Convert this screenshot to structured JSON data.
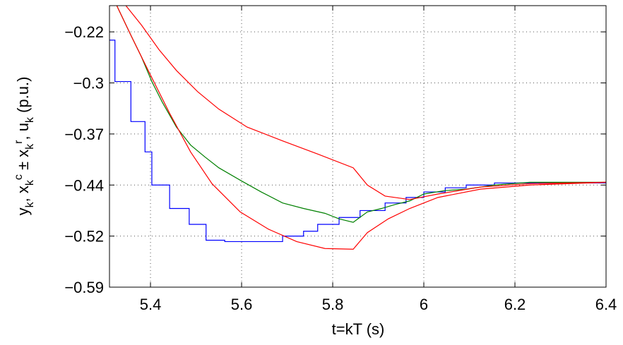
{
  "chart_data": {
    "type": "line",
    "xlabel": "t=kT (s)",
    "ylabel": [
      "y",
      "k",
      ", x",
      "k",
      "c",
      " ± x",
      "k",
      "r",
      ", u",
      "k",
      " (p.u.)"
    ],
    "xlim": [
      5.31,
      6.4
    ],
    "xticks": [
      5.4,
      5.6,
      5.8,
      6,
      6.2,
      6.4
    ],
    "ylim": [
      -0.592,
      -0.184
    ],
    "yticks": [
      {
        "value": -0.592,
        "label": "−0.59"
      },
      {
        "value": -0.518,
        "label": "−0.52"
      },
      {
        "value": -0.444,
        "label": "−0.44"
      },
      {
        "value": -0.37,
        "label": "−0.37"
      },
      {
        "value": -0.296,
        "label": "−0.3"
      },
      {
        "value": -0.222,
        "label": "−0.22"
      }
    ],
    "grid": true,
    "series": [
      {
        "color": "#0000ff",
        "x": [
          5.31,
          5.322,
          5.322,
          5.357,
          5.357,
          5.388,
          5.388,
          5.403,
          5.403,
          5.442,
          5.442,
          5.485,
          5.485,
          5.522,
          5.522,
          5.563,
          5.563,
          5.69,
          5.69,
          5.736,
          5.736,
          5.767,
          5.767,
          5.814,
          5.814,
          5.86,
          5.86,
          5.915,
          5.915,
          5.961,
          5.961,
          6.0,
          6.0,
          6.047,
          6.047,
          6.093,
          6.093,
          6.155,
          6.155,
          6.4
        ],
        "values": [
          -0.234,
          -0.234,
          -0.294,
          -0.294,
          -0.352,
          -0.352,
          -0.396,
          -0.396,
          -0.444,
          -0.444,
          -0.478,
          -0.478,
          -0.501,
          -0.501,
          -0.524,
          -0.524,
          -0.526,
          -0.526,
          -0.518,
          -0.518,
          -0.511,
          -0.511,
          -0.501,
          -0.501,
          -0.491,
          -0.491,
          -0.481,
          -0.481,
          -0.47,
          -0.47,
          -0.462,
          -0.462,
          -0.454,
          -0.454,
          -0.448,
          -0.448,
          -0.444,
          -0.444,
          -0.441,
          -0.441
        ]
      },
      {
        "color": "#008000",
        "x": [
          5.326,
          5.357,
          5.38,
          5.403,
          5.426,
          5.457,
          5.488,
          5.519,
          5.55,
          5.597,
          5.643,
          5.69,
          5.736,
          5.783,
          5.814,
          5.845,
          5.876,
          5.907,
          5.938,
          5.969,
          6.0,
          6.047,
          6.093,
          6.155,
          6.233,
          6.31,
          6.4
        ],
        "values": [
          -0.184,
          -0.227,
          -0.258,
          -0.294,
          -0.324,
          -0.36,
          -0.386,
          -0.403,
          -0.419,
          -0.437,
          -0.454,
          -0.47,
          -0.478,
          -0.485,
          -0.493,
          -0.498,
          -0.483,
          -0.478,
          -0.472,
          -0.467,
          -0.457,
          -0.452,
          -0.45,
          -0.444,
          -0.44,
          -0.44,
          -0.44
        ]
      },
      {
        "color": "#ff0000",
        "x": [
          5.346,
          5.38,
          5.419,
          5.457,
          5.504,
          5.55,
          5.612,
          5.69,
          5.767,
          5.845,
          5.876,
          5.915,
          5.969,
          6.031,
          6.124,
          6.233,
          6.4
        ],
        "values": [
          -0.184,
          -0.212,
          -0.248,
          -0.278,
          -0.309,
          -0.334,
          -0.36,
          -0.38,
          -0.399,
          -0.419,
          -0.444,
          -0.46,
          -0.465,
          -0.457,
          -0.447,
          -0.442,
          -0.44
        ]
      },
      {
        "color": "#ff0000",
        "x": [
          5.326,
          5.357,
          5.395,
          5.442,
          5.488,
          5.535,
          5.597,
          5.659,
          5.721,
          5.783,
          5.845,
          5.876,
          5.922,
          5.969,
          6.031,
          6.124,
          6.233,
          6.4
        ],
        "values": [
          -0.184,
          -0.227,
          -0.278,
          -0.34,
          -0.396,
          -0.442,
          -0.483,
          -0.508,
          -0.526,
          -0.536,
          -0.537,
          -0.513,
          -0.493,
          -0.478,
          -0.462,
          -0.45,
          -0.444,
          -0.44
        ]
      }
    ]
  }
}
